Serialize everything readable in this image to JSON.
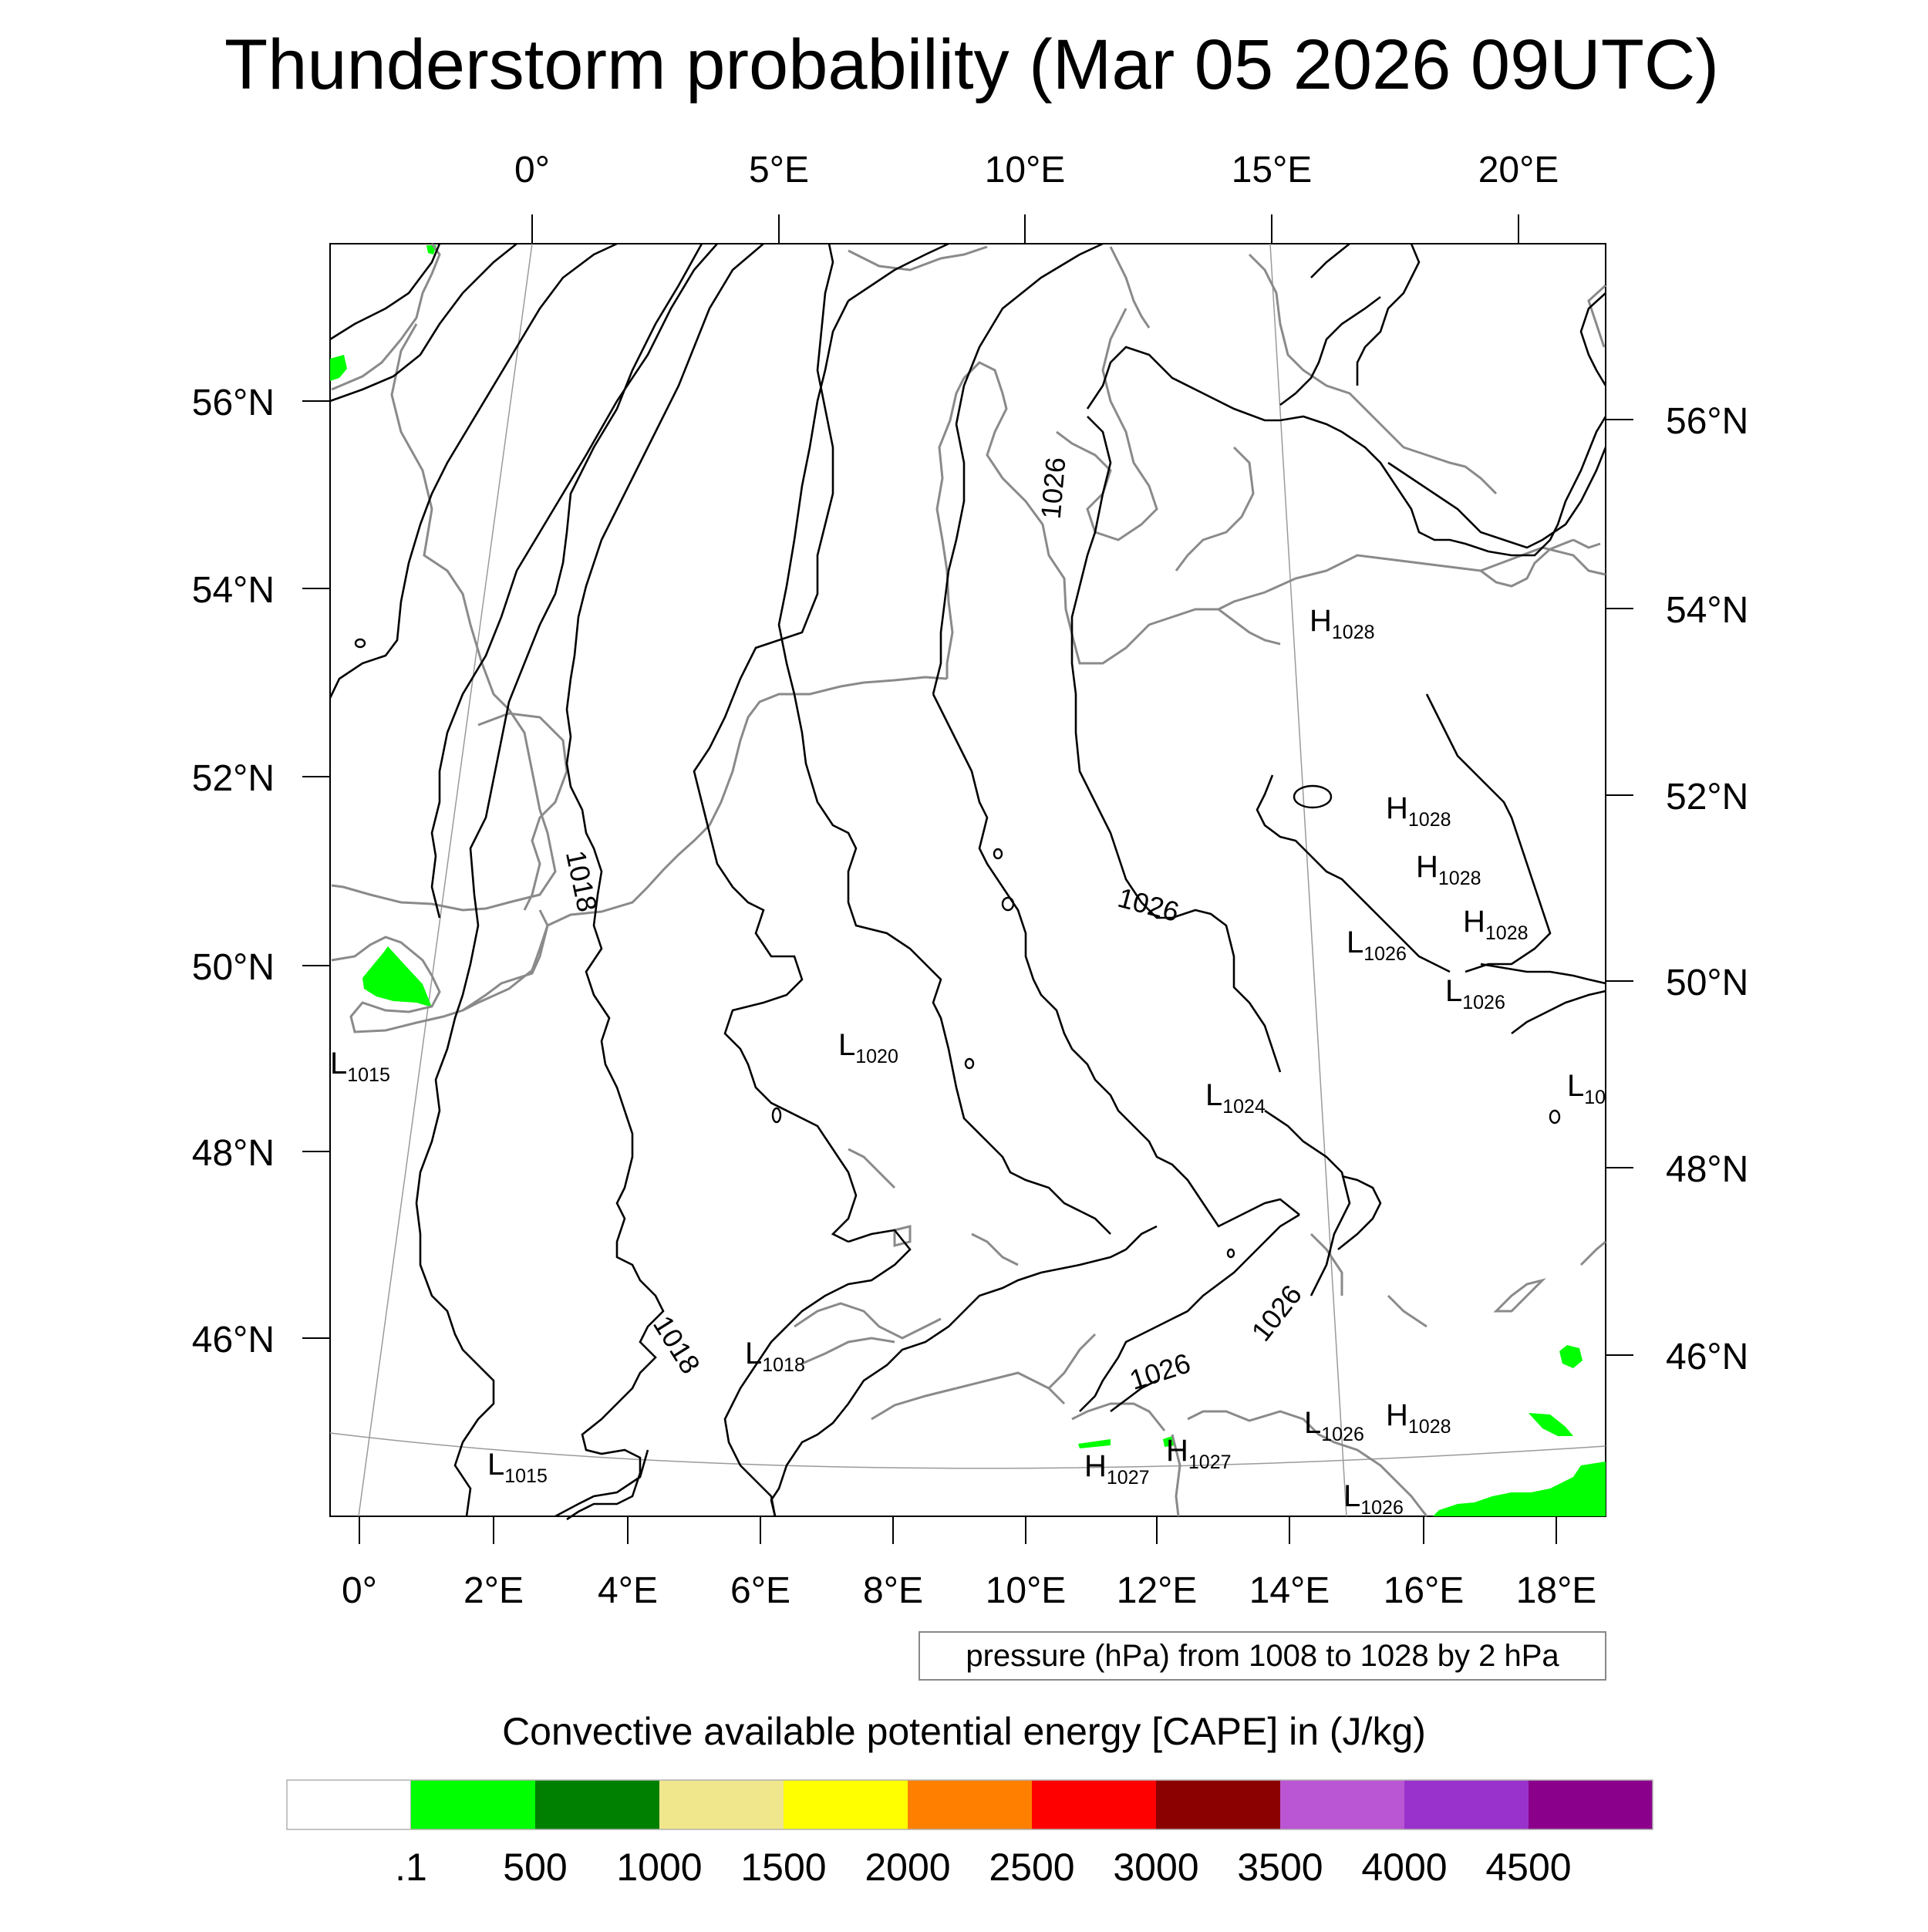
{
  "title": "Thunderstorm probability (Mar 05 2026 09UTC)",
  "top_lon_labels": [
    "0°",
    "5°E",
    "10°E",
    "15°E",
    "20°E"
  ],
  "bottom_lon_labels": [
    "0°",
    "2°E",
    "4°E",
    "6°E",
    "8°E",
    "10°E",
    "12°E",
    "14°E",
    "16°E",
    "18°E"
  ],
  "left_lat_labels": [
    "56°N",
    "54°N",
    "52°N",
    "50°N",
    "48°N",
    "46°N"
  ],
  "right_lat_labels": [
    "56°N",
    "54°N",
    "52°N",
    "50°N",
    "48°N",
    "46°N"
  ],
  "contour_info": "pressure (hPa) from 1008 to 1028 by 2 hPa",
  "contour_labels": [
    "1018",
    "1018",
    "1026",
    "1026",
    "1026",
    "1026"
  ],
  "pressure_centers": [
    {
      "type": "H",
      "value": "1028"
    },
    {
      "type": "H",
      "value": "1028"
    },
    {
      "type": "H",
      "value": "1028"
    },
    {
      "type": "H",
      "value": "1028"
    },
    {
      "type": "L",
      "value": "1026"
    },
    {
      "type": "L",
      "value": "1026"
    },
    {
      "type": "L",
      "value": "1015"
    },
    {
      "type": "L",
      "value": "1020"
    },
    {
      "type": "L",
      "value": "1024"
    },
    {
      "type": "L",
      "value": "10"
    },
    {
      "type": "L",
      "value": "1018"
    },
    {
      "type": "L",
      "value": "1015"
    },
    {
      "type": "L",
      "value": "1026"
    },
    {
      "type": "H",
      "value": "1028"
    },
    {
      "type": "H",
      "value": "1027"
    },
    {
      "type": "H",
      "value": "1027"
    },
    {
      "type": "L",
      "value": "1026"
    }
  ],
  "colorbar": {
    "title": "Convective available potential energy [CAPE] in (J/kg)",
    "colors": [
      "#ffffff",
      "#00ff00",
      "#008000",
      "#f0e68c",
      "#ffff00",
      "#ff8000",
      "#ff0000",
      "#8b0000",
      "#ba55d3",
      "#9932cc",
      "#8b008b"
    ],
    "tick_labels": [
      ".1",
      "500",
      "1000",
      "1500",
      "2000",
      "2500",
      "3000",
      "3500",
      "4000",
      "4500"
    ]
  }
}
